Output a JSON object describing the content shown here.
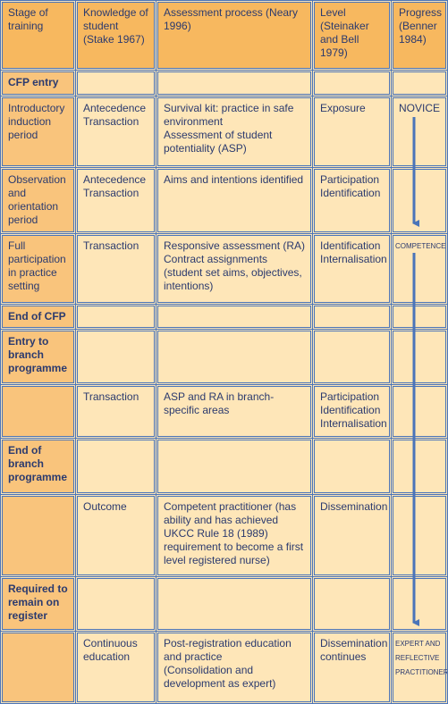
{
  "table": {
    "header": [
      "Stage of training",
      "Knowledge of student (Stake 1967)",
      "Assessment process (Neary 1996)",
      "Level (Steinaker and Bell 1979)",
      "Progress (Benner 1984)"
    ],
    "rows": [
      [
        "CFP entry",
        null,
        null,
        null,
        null
      ],
      [
        "Introductory induction period",
        [
          "Antecedence",
          "Transaction"
        ],
        [
          "Survival kit: practice in safe environment",
          "Assessment of student potentiality (ASP)"
        ],
        "Exposure",
        "NOVICE"
      ],
      [
        "Observation and orientation period",
        [
          "Antecedence",
          "Transaction"
        ],
        "Aims and intentions identified",
        [
          "Participation",
          "Identification"
        ],
        null
      ],
      [
        "Full participation in practice setting",
        "Transaction",
        [
          "Responsive assessment (RA)",
          "Contract assignments",
          "(student set aims, objectives, intentions)"
        ],
        [
          "Identification",
          "Internalisation"
        ],
        "COMPETENCE"
      ],
      [
        "End of CFP",
        null,
        null,
        null,
        null
      ],
      [
        "Entry to branch programme",
        null,
        null,
        null,
        null
      ],
      [
        null,
        "Transaction",
        "ASP and RA in branch-specific areas",
        [
          "Participation",
          "Identification",
          "Internalisation"
        ],
        null
      ],
      [
        "End of branch programme",
        null,
        null,
        null,
        null
      ],
      [
        null,
        "Outcome",
        "Competent practitioner (has ability and has achieved UKCC Rule 18 (1989) requirement to become a first level registered nurse)",
        "Dissemination",
        null
      ],
      [
        "Required to remain on register",
        null,
        null,
        null,
        null
      ],
      [
        null,
        "Continuous education",
        [
          "Post-registration education and practice",
          "(Consolidation and development as expert)"
        ],
        "Dissemination continues",
        "EXPERT AND REFLECTIVE PRACTITIONER"
      ]
    ]
  }
}
